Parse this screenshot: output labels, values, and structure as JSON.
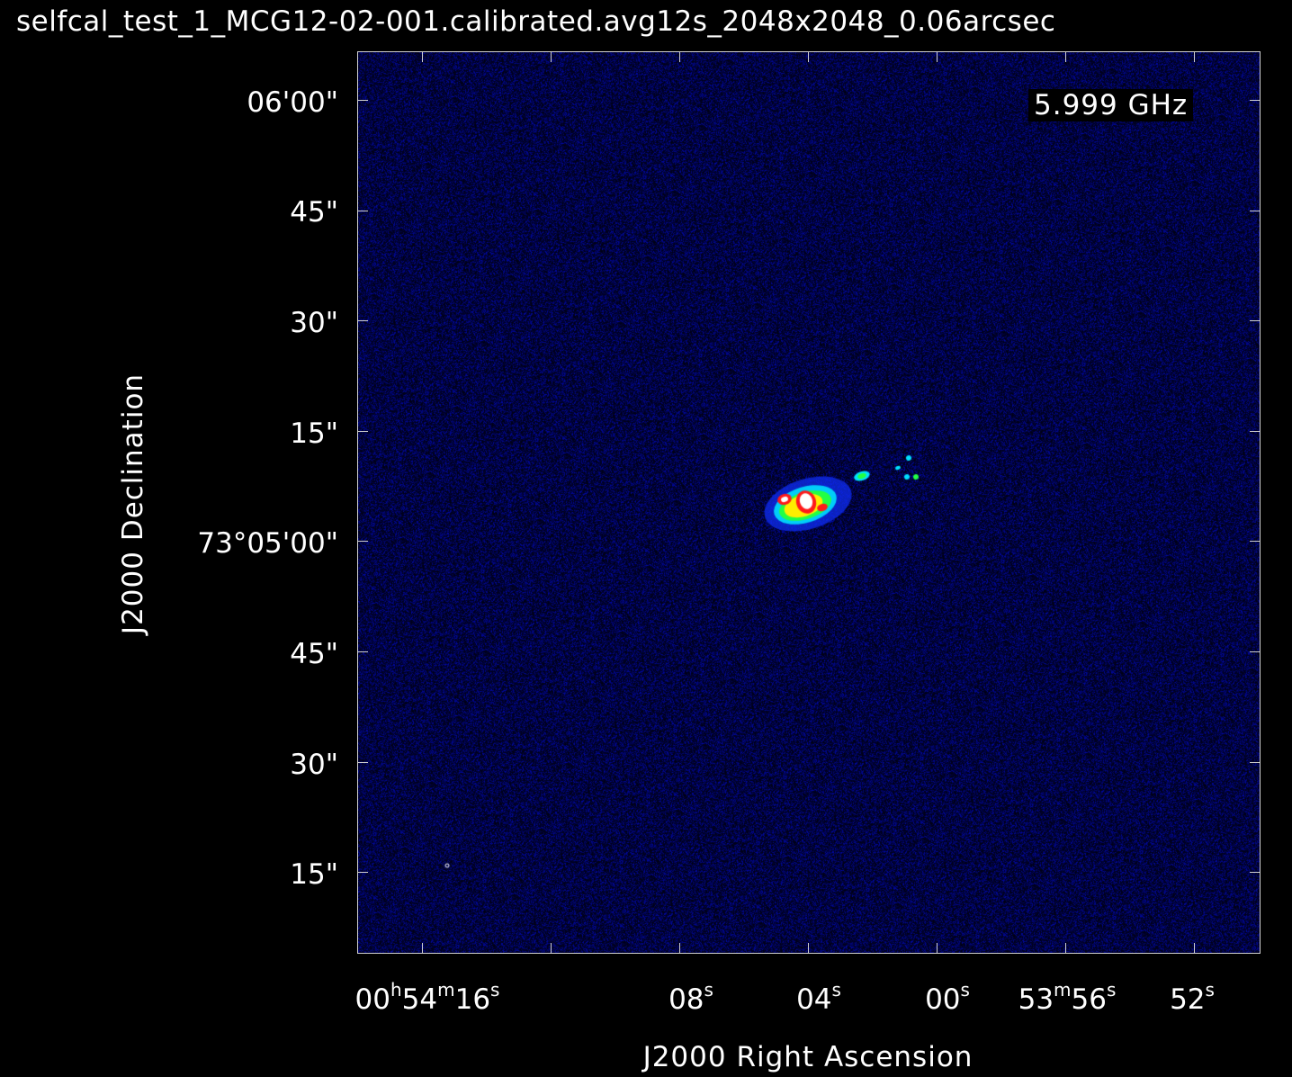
{
  "title": "selfcal_test_1_MCG12-02-001.calibrated.avg12s_2048x2048_0.06arcsec",
  "frequency_label": "5.999 GHz",
  "x_axis": {
    "title": "J2000 Right Ascension",
    "ticks": [
      {
        "h": "00",
        "m": "54",
        "s": "16",
        "full": true
      },
      {
        "s": "08"
      },
      {
        "s": "04"
      },
      {
        "s": "00"
      },
      {
        "m": "53",
        "s": "56",
        "minute_only": true
      },
      {
        "s": "52"
      }
    ]
  },
  "y_axis": {
    "title": "J2000 Declination",
    "ticks": [
      "06'00\"",
      "45\"",
      "30\"",
      "15\"",
      "73°05'00\"",
      "45\"",
      "30\"",
      "15\""
    ]
  },
  "colors": {
    "background": "#000000",
    "noise_dark": "#000010",
    "noise_blue": "#1a1aa0",
    "source_core": "#ffffff",
    "source_red": "#ff1a1a",
    "source_yellow": "#ffee00",
    "source_green": "#22ff44",
    "source_cyan": "#00e0ff"
  }
}
